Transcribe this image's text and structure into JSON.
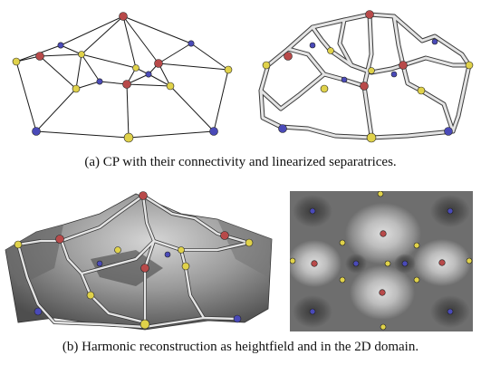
{
  "figure": {
    "caption_a": "(a) CP with their connectivity and linearized separatrices.",
    "caption_b": "(b) Harmonic reconstruction as heightfield and in the 2D domain."
  },
  "colors": {
    "maximum": "#b84a4a",
    "minimum": "#4a4ab8",
    "saddle": "#e0d24a",
    "edge": "#1a1a1a",
    "separatrix": "#d8d8d8",
    "surface_dark": "#4d4d4d",
    "surface_light": "#d8d8d8"
  }
}
